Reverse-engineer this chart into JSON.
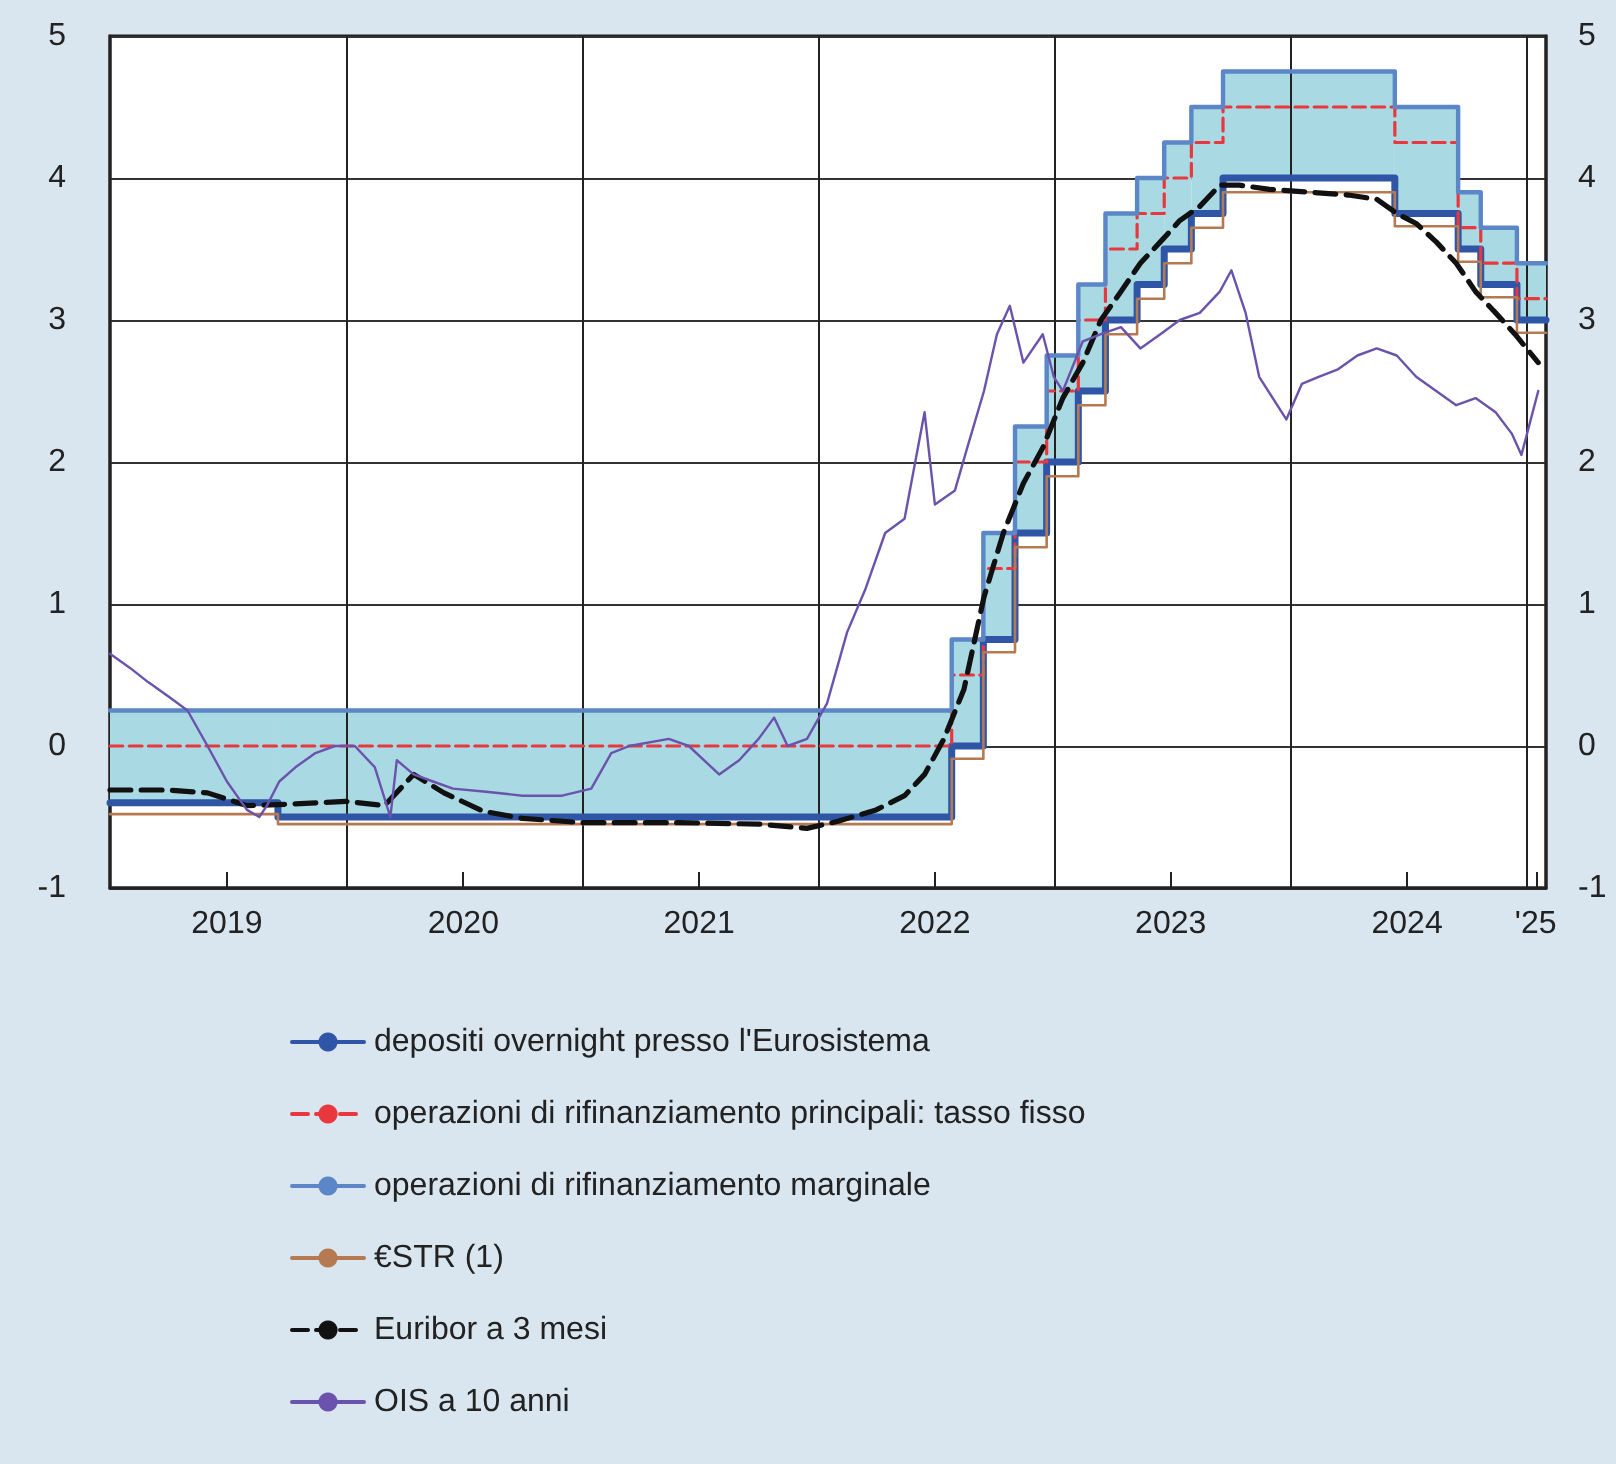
{
  "chart_data": {
    "type": "line",
    "marker": "none",
    "grid": true,
    "legend": "bottom",
    "xlim": [
      "2019-01-01",
      "2025-02-01"
    ],
    "xticks": [
      {
        "value": "2019-07-01",
        "label": "2019"
      },
      {
        "value": "2020-07-01",
        "label": "2020"
      },
      {
        "value": "2021-07-01",
        "label": "2021"
      },
      {
        "value": "2022-07-01",
        "label": "2022"
      },
      {
        "value": "2023-07-01",
        "label": "2023"
      },
      {
        "value": "2024-07-01",
        "label": "2024"
      },
      {
        "value": "2025-01-16",
        "label": "'25"
      },
      {
        "value": "2020-01-01",
        "label": null
      },
      {
        "value": "2021-01-01",
        "label": null
      },
      {
        "value": "2022-01-01",
        "label": null
      },
      {
        "value": "2023-01-01",
        "label": null
      },
      {
        "value": "2024-01-01",
        "label": null
      },
      {
        "value": "2025-01-01",
        "label": null
      }
    ],
    "ylim": [
      -1,
      5
    ],
    "yticks": [
      -1,
      0,
      1,
      2,
      3,
      4,
      5
    ],
    "y2lim": [
      -1,
      5
    ],
    "y2ticks": [
      -1,
      0,
      1,
      2,
      3,
      4,
      5
    ],
    "x": [
      "2019-01-01",
      "2019-09-18",
      "2022-07-27",
      "2022-09-14",
      "2022-11-02",
      "2022-12-21",
      "2023-02-08",
      "2023-03-22",
      "2023-05-10",
      "2023-06-21",
      "2023-08-02",
      "2023-09-20",
      "2024-06-12",
      "2024-09-18",
      "2024-10-23",
      "2024-12-18",
      "2025-02-01"
    ],
    "series": [
      {
        "name": "depositi overnight presso l'Eurosistema",
        "type": "step",
        "color": "#2f56a6",
        "line_style": "solid",
        "values": [
          -0.4,
          -0.5,
          0,
          0.75,
          1.5,
          2,
          2.5,
          3,
          3.25,
          3.5,
          3.75,
          4,
          3.75,
          3.5,
          3.25,
          3,
          3
        ]
      },
      {
        "name": "operazioni di rifinanziamento principali: tasso fisso",
        "type": "step",
        "color": "#e8383d",
        "line_style": "dashed",
        "values": [
          0,
          0,
          0.5,
          1.25,
          2,
          2.5,
          3,
          3.5,
          3.75,
          4,
          4.25,
          4.5,
          4.25,
          3.65,
          3.4,
          3.15,
          3.15
        ],
        "lower": [
          -0.4,
          -0.5,
          0,
          0.75,
          1.5,
          2,
          2.5,
          3,
          3.25,
          3.5,
          3.75,
          4,
          3.75,
          3.5,
          3.25,
          3,
          3
        ],
        "upper": [
          0.25,
          0.25,
          0.75,
          1.5,
          2.25,
          2.75,
          3.25,
          3.75,
          4,
          4.25,
          4.5,
          4.75,
          4.5,
          3.9,
          3.65,
          3.4,
          3.4
        ]
      },
      {
        "name": "operazioni di rifinanziamento marginale",
        "type": "step",
        "color": "#5b86c8",
        "line_style": "solid",
        "values": [
          0.25,
          0.25,
          0.75,
          1.5,
          2.25,
          2.75,
          3.25,
          3.75,
          4,
          4.25,
          4.5,
          4.75,
          4.5,
          3.9,
          3.65,
          3.4,
          3.4
        ]
      },
      {
        "name": "€STR (1)",
        "type": "step",
        "color": "#b57a52",
        "line_style": "solid",
        "values": [
          -0.48,
          -0.55,
          -0.09,
          0.66,
          1.4,
          1.9,
          2.4,
          2.9,
          3.15,
          3.4,
          3.65,
          3.9,
          3.66,
          3.41,
          3.16,
          2.91,
          2.91
        ]
      },
      {
        "name": "Euribor a 3 mesi",
        "type": "line",
        "color": "#111111",
        "line_style": "dashed",
        "x": [
          "2019-01-01",
          "2019-04-01",
          "2019-06-01",
          "2019-08-01",
          "2019-10-01",
          "2020-01-01",
          "2020-03-01",
          "2020-04-15",
          "2020-06-01",
          "2020-08-01",
          "2020-10-01",
          "2021-01-01",
          "2021-06-01",
          "2021-10-01",
          "2021-12-15",
          "2022-02-01",
          "2022-04-01",
          "2022-05-15",
          "2022-06-15",
          "2022-07-15",
          "2022-08-15",
          "2022-09-15",
          "2022-10-15",
          "2022-11-15",
          "2022-12-15",
          "2023-01-15",
          "2023-02-15",
          "2023-03-15",
          "2023-04-15",
          "2023-05-15",
          "2023-06-15",
          "2023-07-15",
          "2023-08-15",
          "2023-09-15",
          "2023-10-15",
          "2023-12-01",
          "2024-02-01",
          "2024-04-01",
          "2024-05-15",
          "2024-06-15",
          "2024-07-15",
          "2024-08-15",
          "2024-09-15",
          "2024-10-15",
          "2024-11-15",
          "2024-12-15",
          "2025-01-20"
        ],
        "values": [
          -0.31,
          -0.31,
          -0.33,
          -0.42,
          -0.41,
          -0.39,
          -0.42,
          -0.2,
          -0.33,
          -0.46,
          -0.51,
          -0.54,
          -0.54,
          -0.55,
          -0.58,
          -0.53,
          -0.45,
          -0.35,
          -0.2,
          0.05,
          0.4,
          1.05,
          1.5,
          1.85,
          2.1,
          2.45,
          2.7,
          3.0,
          3.2,
          3.4,
          3.55,
          3.7,
          3.8,
          3.95,
          3.95,
          3.92,
          3.9,
          3.88,
          3.85,
          3.75,
          3.68,
          3.55,
          3.4,
          3.2,
          3.05,
          2.9,
          2.7
        ]
      },
      {
        "name": "OIS a 10 anni",
        "type": "line",
        "color": "#6b53ad",
        "line_style": "solid",
        "x": [
          "2019-01-01",
          "2019-02-01",
          "2019-03-01",
          "2019-04-01",
          "2019-05-01",
          "2019-06-01",
          "2019-07-01",
          "2019-08-01",
          "2019-08-20",
          "2019-09-01",
          "2019-09-20",
          "2019-10-15",
          "2019-11-15",
          "2019-12-15",
          "2020-01-15",
          "2020-02-15",
          "2020-03-10",
          "2020-03-20",
          "2020-04-15",
          "2020-05-15",
          "2020-06-15",
          "2020-08-01",
          "2020-10-01",
          "2020-12-01",
          "2021-01-15",
          "2021-02-15",
          "2021-03-15",
          "2021-05-15",
          "2021-06-15",
          "2021-08-01",
          "2021-09-01",
          "2021-10-01",
          "2021-10-25",
          "2021-11-15",
          "2021-12-15",
          "2022-01-15",
          "2022-02-15",
          "2022-03-15",
          "2022-04-15",
          "2022-05-15",
          "2022-06-15",
          "2022-07-01",
          "2022-08-01",
          "2022-08-20",
          "2022-09-15",
          "2022-10-05",
          "2022-10-25",
          "2022-11-15",
          "2022-12-15",
          "2023-01-01",
          "2023-01-15",
          "2023-02-15",
          "2023-03-15",
          "2023-04-15",
          "2023-05-15",
          "2023-06-15",
          "2023-07-15",
          "2023-08-15",
          "2023-09-15",
          "2023-10-03",
          "2023-10-25",
          "2023-11-15",
          "2023-12-27",
          "2024-01-20",
          "2024-02-15",
          "2024-03-15",
          "2024-04-15",
          "2024-05-15",
          "2024-06-15",
          "2024-07-15",
          "2024-08-15",
          "2024-09-15",
          "2024-10-15",
          "2024-11-15",
          "2024-12-10",
          "2024-12-25",
          "2025-01-20"
        ],
        "values": [
          0.65,
          0.55,
          0.45,
          0.35,
          0.25,
          0.0,
          -0.25,
          -0.45,
          -0.5,
          -0.42,
          -0.25,
          -0.15,
          -0.05,
          0.0,
          0.0,
          -0.15,
          -0.5,
          -0.1,
          -0.2,
          -0.25,
          -0.3,
          -0.32,
          -0.35,
          -0.35,
          -0.3,
          -0.05,
          0.0,
          0.05,
          0.0,
          -0.2,
          -0.1,
          0.05,
          0.2,
          0.0,
          0.05,
          0.3,
          0.8,
          1.1,
          1.5,
          1.6,
          2.35,
          1.7,
          1.8,
          2.1,
          2.5,
          2.9,
          3.1,
          2.7,
          2.9,
          2.6,
          2.5,
          2.85,
          2.9,
          2.95,
          2.8,
          2.9,
          3.0,
          3.05,
          3.2,
          3.35,
          3.05,
          2.6,
          2.3,
          2.55,
          2.6,
          2.65,
          2.75,
          2.8,
          2.75,
          2.6,
          2.5,
          2.4,
          2.45,
          2.35,
          2.2,
          2.05,
          2.5
        ]
      }
    ]
  }
}
